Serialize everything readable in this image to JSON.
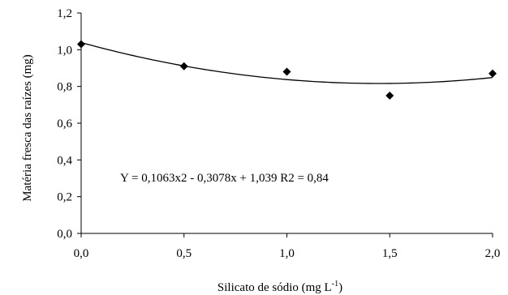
{
  "chart_data": {
    "type": "scatter",
    "xlabel": "Silicato de sódio (mg L",
    "xlabel_sup": "-1",
    "xlabel_close": ")",
    "ylabel": "Matéria fresca das raízes (mg)",
    "xlim": [
      0,
      2.0
    ],
    "ylim": [
      0,
      1.2
    ],
    "x_ticks": [
      "0,0",
      "0,5",
      "1,0",
      "1,5",
      "2,0"
    ],
    "x_tick_values": [
      0,
      0.5,
      1.0,
      1.5,
      2.0
    ],
    "y_ticks": [
      "0,0",
      "0,2",
      "0,4",
      "0,6",
      "0,8",
      "1,0",
      "1,2"
    ],
    "y_tick_values": [
      0,
      0.2,
      0.4,
      0.6,
      0.8,
      1.0,
      1.2
    ],
    "grid": false,
    "series": [
      {
        "marker": "diamond",
        "x": [
          0,
          0.5,
          1.0,
          1.5,
          2.0
        ],
        "y": [
          1.03,
          0.91,
          0.88,
          0.75,
          0.87
        ]
      }
    ],
    "trendline": {
      "type": "polynomial",
      "coefficients": [
        0.1063,
        -0.3078,
        1.039
      ],
      "x_range": [
        0,
        2.0
      ]
    },
    "annotation": "Y = 0,1063x2 - 0,3078x + 1,039  R2 = 0,84"
  }
}
